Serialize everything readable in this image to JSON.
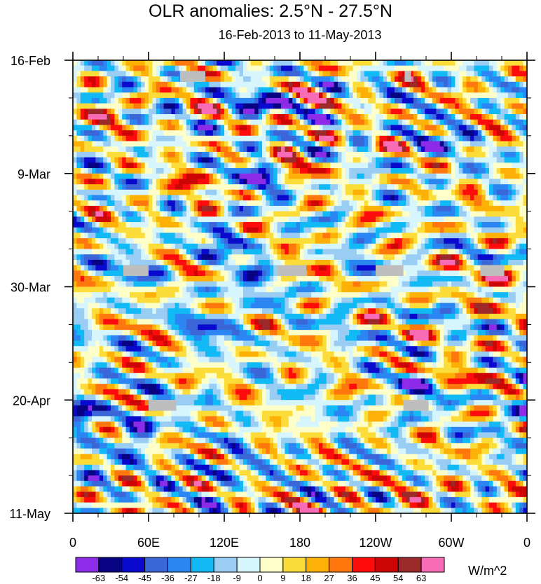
{
  "chart_data": {
    "type": "heatmap",
    "title": "OLR anomalies: 2.5°N - 27.5°N",
    "subtitle": "16-Feb-2013 to 11-May-2013",
    "x_ticks": [
      "0",
      "60E",
      "120E",
      "180",
      "120W",
      "60W",
      "0"
    ],
    "x_range_deg_east": [
      0,
      360
    ],
    "y_ticks": [
      "16-Feb",
      "9-Mar",
      "30-Mar",
      "20-Apr",
      "11-May"
    ],
    "y_range": [
      "16-Feb-2013",
      "11-May-2013"
    ],
    "colorbar": {
      "units": "W/m^2",
      "levels": [
        -63,
        -54,
        -45,
        -36,
        -27,
        -18,
        -9,
        0,
        9,
        18,
        27,
        36,
        45,
        54,
        63
      ],
      "level_labels": [
        "-63",
        "-54",
        "-45",
        "-36",
        "-27",
        "-18",
        "-9",
        "0",
        "9",
        "18",
        "27",
        "36",
        "45",
        "54",
        "63"
      ],
      "colors": [
        "#8C2BE8",
        "#080382",
        "#0A0ACE",
        "#3A66D8",
        "#2B86F3",
        "#11BAF4",
        "#9ACDF3",
        "#D7F5FD",
        "#FDFEC8",
        "#FCDC38",
        "#FDB005",
        "#FE780E",
        "#FE0B0B",
        "#CD0505",
        "#9C2A2A",
        "#F86BB6"
      ]
    },
    "missing_data_color": "#BEBEBE",
    "anomaly_features": [
      {
        "lon": 145,
        "day": 8,
        "value": -50
      },
      {
        "lon": 150,
        "day": 22,
        "value": -55
      },
      {
        "lon": 122,
        "day": 34,
        "value": -45
      },
      {
        "lon": 140,
        "day": 42,
        "value": -40
      },
      {
        "lon": 105,
        "day": 50,
        "value": -45
      },
      {
        "lon": 45,
        "day": 38,
        "value": -35
      },
      {
        "lon": 55,
        "day": 68,
        "value": -45
      },
      {
        "lon": 5,
        "day": 64,
        "value": -55
      },
      {
        "lon": 20,
        "day": 76,
        "value": -35
      },
      {
        "lon": 125,
        "day": 76,
        "value": -35
      },
      {
        "lon": 215,
        "day": 38,
        "value": -35
      },
      {
        "lon": 290,
        "day": 15,
        "value": -40
      },
      {
        "lon": 268,
        "day": 62,
        "value": -36
      },
      {
        "lon": 175,
        "day": 20,
        "value": 30
      },
      {
        "lon": 200,
        "day": 38,
        "value": 35
      },
      {
        "lon": 335,
        "day": 41,
        "value": 40
      },
      {
        "lon": 90,
        "day": 24,
        "value": 30
      },
      {
        "lon": 190,
        "day": 85,
        "value": 35
      },
      {
        "lon": 280,
        "day": 80,
        "value": 30
      },
      {
        "lon": 30,
        "day": 10,
        "value": 25
      },
      {
        "lon": 320,
        "day": 58,
        "value": 25
      }
    ],
    "missing_blocks": [
      {
        "lon": [
          85,
          105
        ],
        "day": [
          2,
          4
        ]
      },
      {
        "lon": [
          263,
          268
        ],
        "day": [
          2,
          4
        ]
      },
      {
        "lon": [
          40,
          60
        ],
        "day": [
          38,
          40
        ]
      },
      {
        "lon": [
          162,
          185
        ],
        "day": [
          38,
          40
        ]
      },
      {
        "lon": [
          240,
          262
        ],
        "day": [
          38,
          40
        ]
      },
      {
        "lon": [
          323,
          342
        ],
        "day": [
          38,
          40
        ]
      },
      {
        "lon": [
          60,
          82
        ],
        "day": [
          63,
          65
        ]
      },
      {
        "lon": [
          262,
          282
        ],
        "day": [
          63,
          65
        ]
      }
    ]
  }
}
